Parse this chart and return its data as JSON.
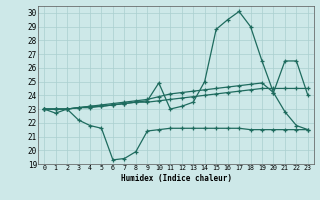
{
  "xlabel": "Humidex (Indice chaleur)",
  "xlim": [
    -0.5,
    23.5
  ],
  "ylim": [
    19,
    30.5
  ],
  "yticks": [
    19,
    20,
    21,
    22,
    23,
    24,
    25,
    26,
    27,
    28,
    29,
    30
  ],
  "xticks": [
    0,
    1,
    2,
    3,
    4,
    5,
    6,
    7,
    8,
    9,
    10,
    11,
    12,
    13,
    14,
    15,
    16,
    17,
    18,
    19,
    20,
    21,
    22,
    23
  ],
  "bg_color": "#cde8e8",
  "line_color": "#1e6b5e",
  "grid_color": "#aacfcf",
  "series": {
    "line1": [
      23.0,
      22.7,
      23.0,
      22.2,
      21.8,
      21.6,
      19.3,
      19.4,
      19.9,
      21.4,
      21.5,
      21.6,
      21.6,
      21.6,
      21.6,
      21.6,
      21.6,
      21.6,
      21.5,
      21.5,
      21.5,
      21.5,
      21.5,
      21.5
    ],
    "line2": [
      23.0,
      23.0,
      23.0,
      23.1,
      23.2,
      23.2,
      23.3,
      23.4,
      23.5,
      23.6,
      24.9,
      23.0,
      23.2,
      23.5,
      25.0,
      28.8,
      29.5,
      30.1,
      29.0,
      26.5,
      24.2,
      22.8,
      21.8,
      21.5
    ],
    "line3": [
      23.0,
      23.0,
      23.0,
      23.1,
      23.2,
      23.3,
      23.4,
      23.5,
      23.6,
      23.7,
      23.9,
      24.1,
      24.2,
      24.3,
      24.4,
      24.5,
      24.6,
      24.7,
      24.8,
      24.9,
      24.2,
      26.5,
      26.5,
      24.0
    ],
    "line4": [
      23.0,
      23.0,
      23.0,
      23.1,
      23.1,
      23.2,
      23.3,
      23.4,
      23.5,
      23.5,
      23.6,
      23.7,
      23.8,
      23.9,
      24.0,
      24.1,
      24.2,
      24.3,
      24.4,
      24.5,
      24.5,
      24.5,
      24.5,
      24.5
    ]
  }
}
